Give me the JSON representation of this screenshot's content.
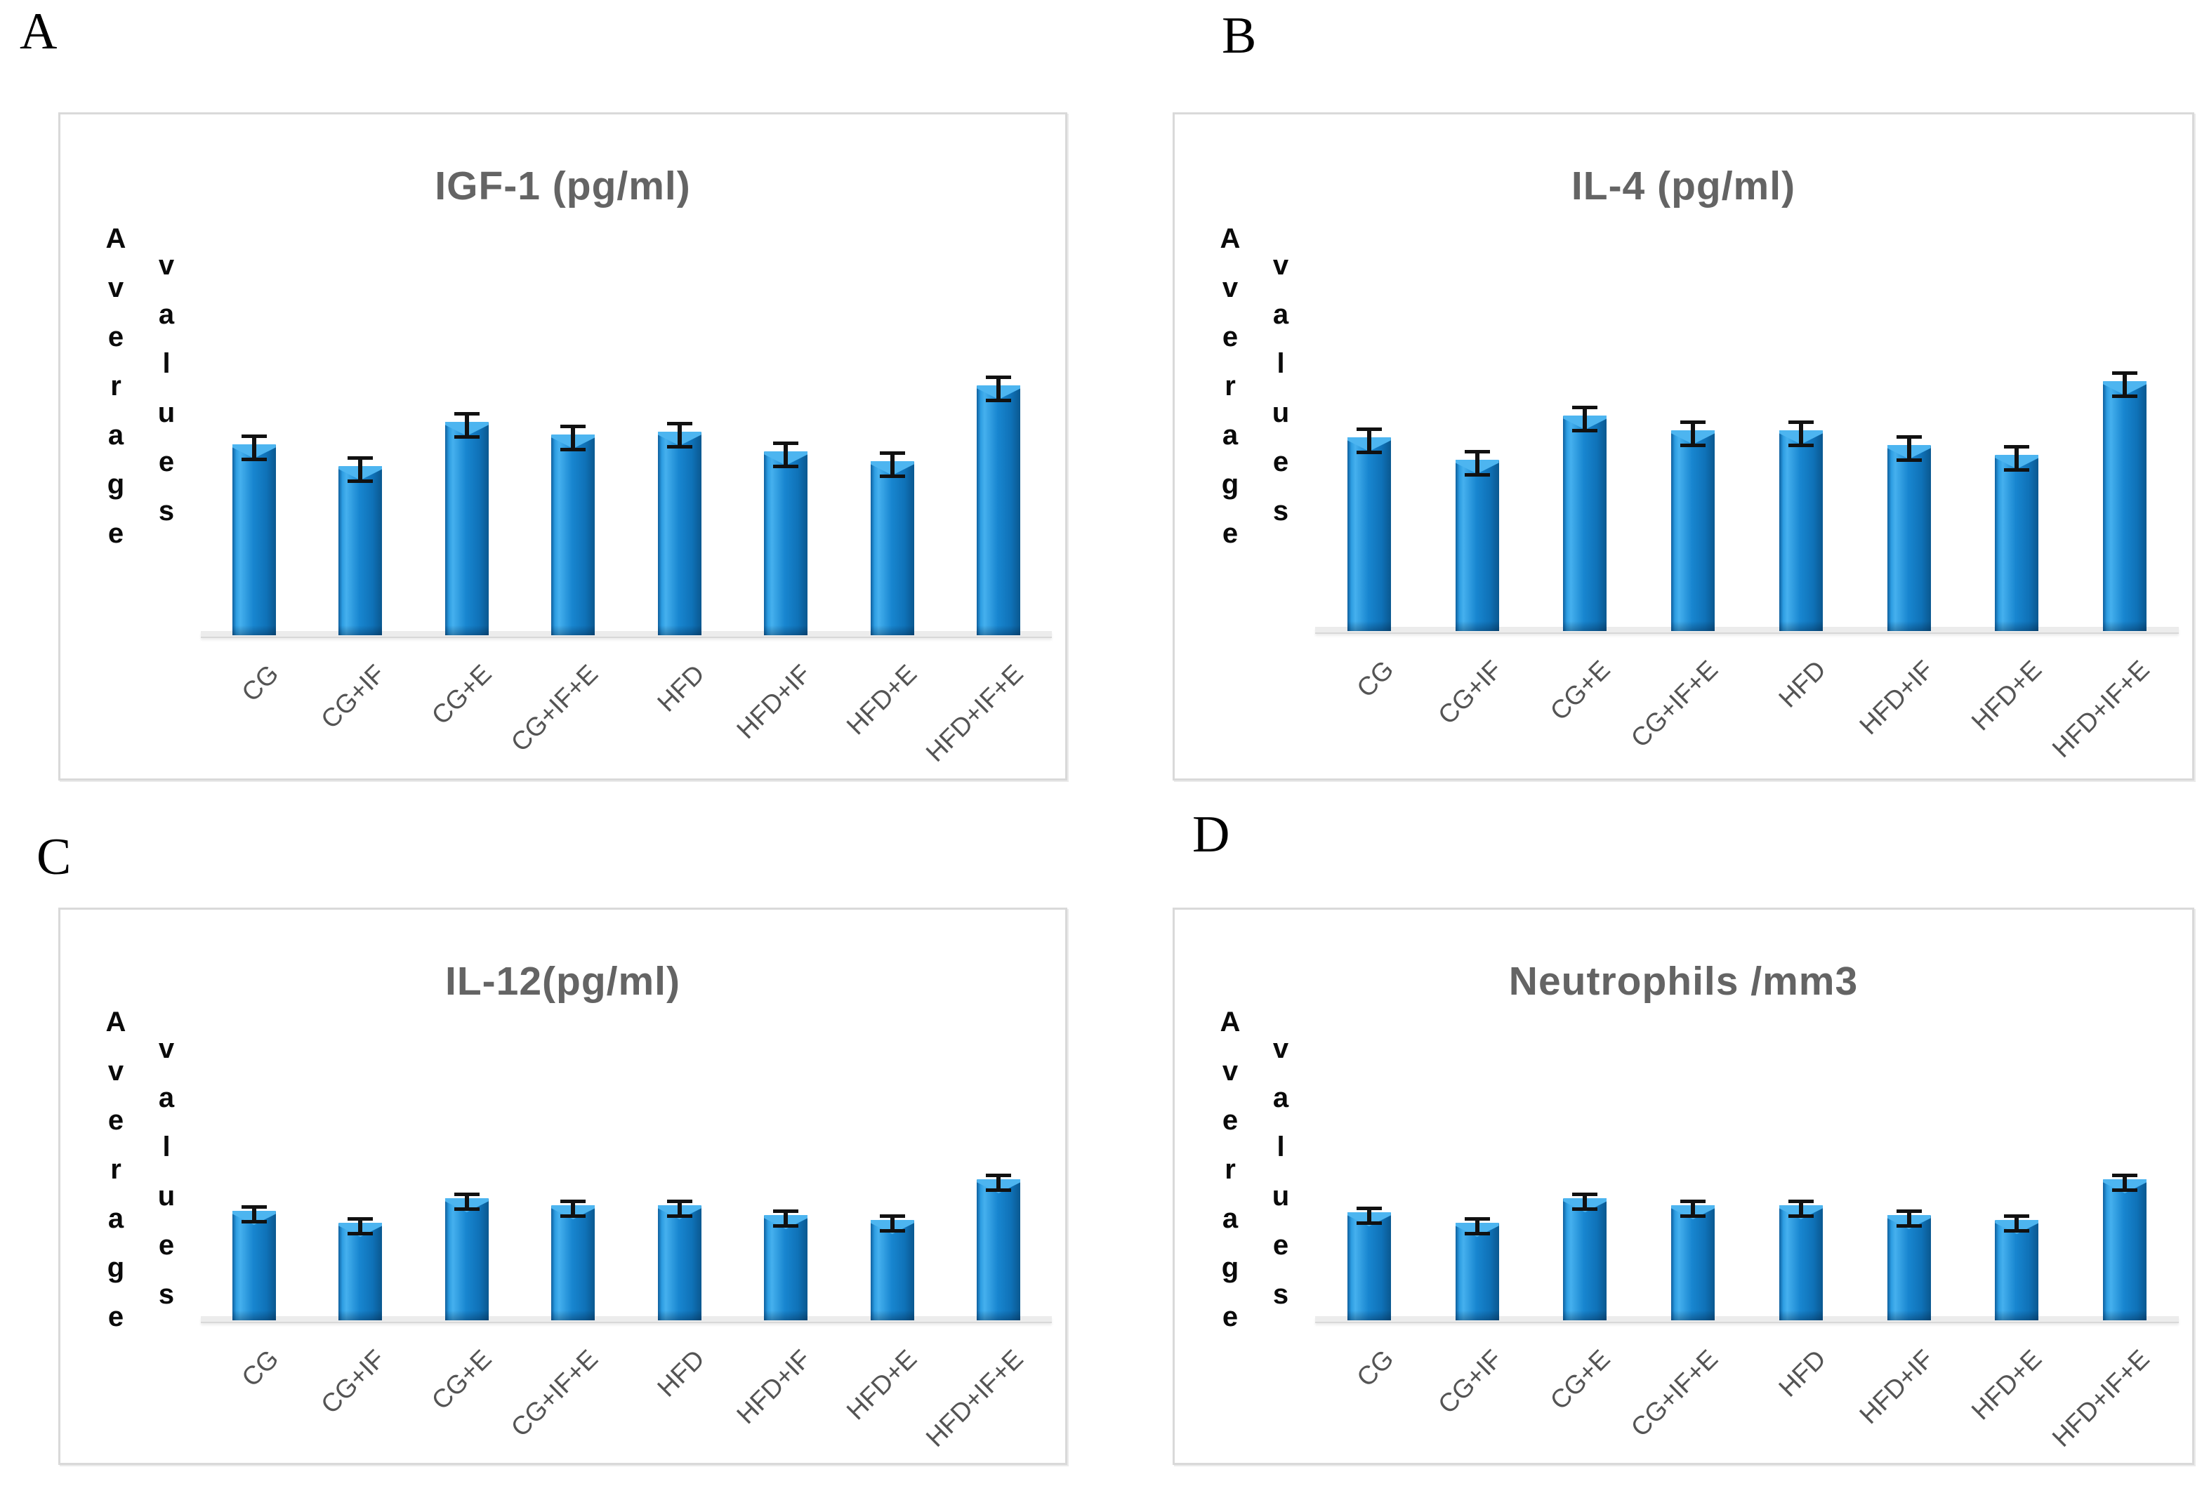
{
  "figure": {
    "background": "#ffffff",
    "panel_labels": [
      "A",
      "B",
      "C",
      "D"
    ],
    "y_axis_word_1": "Average",
    "y_axis_word_2": "values",
    "categories": [
      "CG",
      "CG+IF",
      "CG+E",
      "CG+IF+E",
      "HFD",
      "HFD+IF",
      "HFD+E",
      "HFD+IF+E"
    ],
    "colors": {
      "bar_main": "#1584cd",
      "bar_highlight": "#45b0ee",
      "bar_edge_dark": "#0a5890",
      "error_bar": "#111111",
      "title_text": "#646464",
      "tick_text": "#545454",
      "panel_border": "#d9d9d9",
      "axis_line": "#ececec"
    }
  },
  "chart_data": [
    {
      "type": "bar",
      "panel": "A",
      "title": "IGF-1 (pg/ml)",
      "ylabel": "Average values",
      "xlabel": "",
      "categories": [
        "CG",
        "CG+IF",
        "CG+E",
        "CG+IF+E",
        "HFD",
        "HFD+IF",
        "HFD+E",
        "HFD+IF+E"
      ],
      "values": [
        76,
        67,
        85,
        80,
        81,
        73,
        69,
        100
      ],
      "errors": [
        4,
        4,
        4,
        4,
        4,
        4,
        4,
        4
      ],
      "ylim": [
        0,
        110
      ],
      "grid": false,
      "legend": false
    },
    {
      "type": "bar",
      "panel": "B",
      "title": "IL-4 (pg/ml)",
      "ylabel": "Average values",
      "xlabel": "",
      "categories": [
        "CG",
        "CG+IF",
        "CG+E",
        "CG+IF+E",
        "HFD",
        "HFD+IF",
        "HFD+E",
        "HFD+IF+E"
      ],
      "values": [
        77,
        68,
        86,
        80,
        80,
        74,
        70,
        100
      ],
      "errors": [
        4,
        4,
        4,
        4,
        4,
        4,
        4,
        4
      ],
      "ylim": [
        0,
        110
      ],
      "grid": false,
      "legend": false
    },
    {
      "type": "bar",
      "panel": "C",
      "title": "IL-12(pg/ml)",
      "ylabel": "Average values",
      "xlabel": "",
      "categories": [
        "CG",
        "CG+IF",
        "CG+E",
        "CG+IF+E",
        "HFD",
        "HFD+IF",
        "HFD+E",
        "HFD+IF+E"
      ],
      "values": [
        77,
        68,
        86,
        81,
        81,
        74,
        70,
        100
      ],
      "errors": [
        4,
        4,
        4,
        4,
        4,
        4,
        4,
        4
      ],
      "ylim": [
        0,
        110
      ],
      "grid": false,
      "legend": false
    },
    {
      "type": "bar",
      "panel": "D",
      "title": "Neutrophils /mm3",
      "ylabel": "Average values",
      "xlabel": "",
      "categories": [
        "CG",
        "CG+IF",
        "CG+E",
        "CG+IF+E",
        "HFD",
        "HFD+IF",
        "HFD+E",
        "HFD+IF+E"
      ],
      "values": [
        76,
        68,
        86,
        81,
        81,
        74,
        70,
        100
      ],
      "errors": [
        4,
        4,
        4,
        4,
        4,
        4,
        4,
        4
      ],
      "ylim": [
        0,
        110
      ],
      "grid": false,
      "legend": false
    }
  ]
}
